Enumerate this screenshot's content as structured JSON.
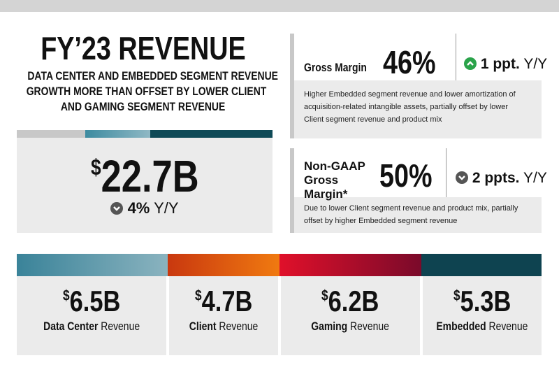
{
  "header": {
    "title": "FY’23 REVENUE",
    "subtitle": [
      "DATA CENTER AND EMBEDDED SEGMENT REVENUE",
      "GROWTH MORE THAN OFFSET BY LOWER CLIENT",
      "AND GAMING SEGMENT REVENUE"
    ]
  },
  "total": {
    "value": "$22.7B",
    "change": "4%",
    "period": "Y/Y"
  },
  "margins": [
    {
      "label": "Gross Margin",
      "value": "46%",
      "change": "1 ppt.",
      "period": "Y/Y",
      "description": "Higher Embedded segment revenue and lower amortization of acquisition-related intangible assets, partially offset by lower Client segment revenue and product mix"
    },
    {
      "label": "Non-GAAP Gross Margin*",
      "value": "50%",
      "change": "2 ppts.",
      "period": "Y/Y",
      "description": "Due to lower Client segment revenue and product mix, partially offset by higher Embedded segment revenue"
    }
  ],
  "segments": [
    {
      "value": "$6.5B",
      "name": "Data Center",
      "suffix": "Revenue"
    },
    {
      "value": "$4.7B",
      "name": "Client",
      "suffix": "Revenue"
    },
    {
      "value": "$6.2B",
      "name": "Gaming",
      "suffix": "Revenue"
    },
    {
      "value": "$5.3B",
      "name": "Embedded",
      "suffix": "Revenue"
    }
  ]
}
